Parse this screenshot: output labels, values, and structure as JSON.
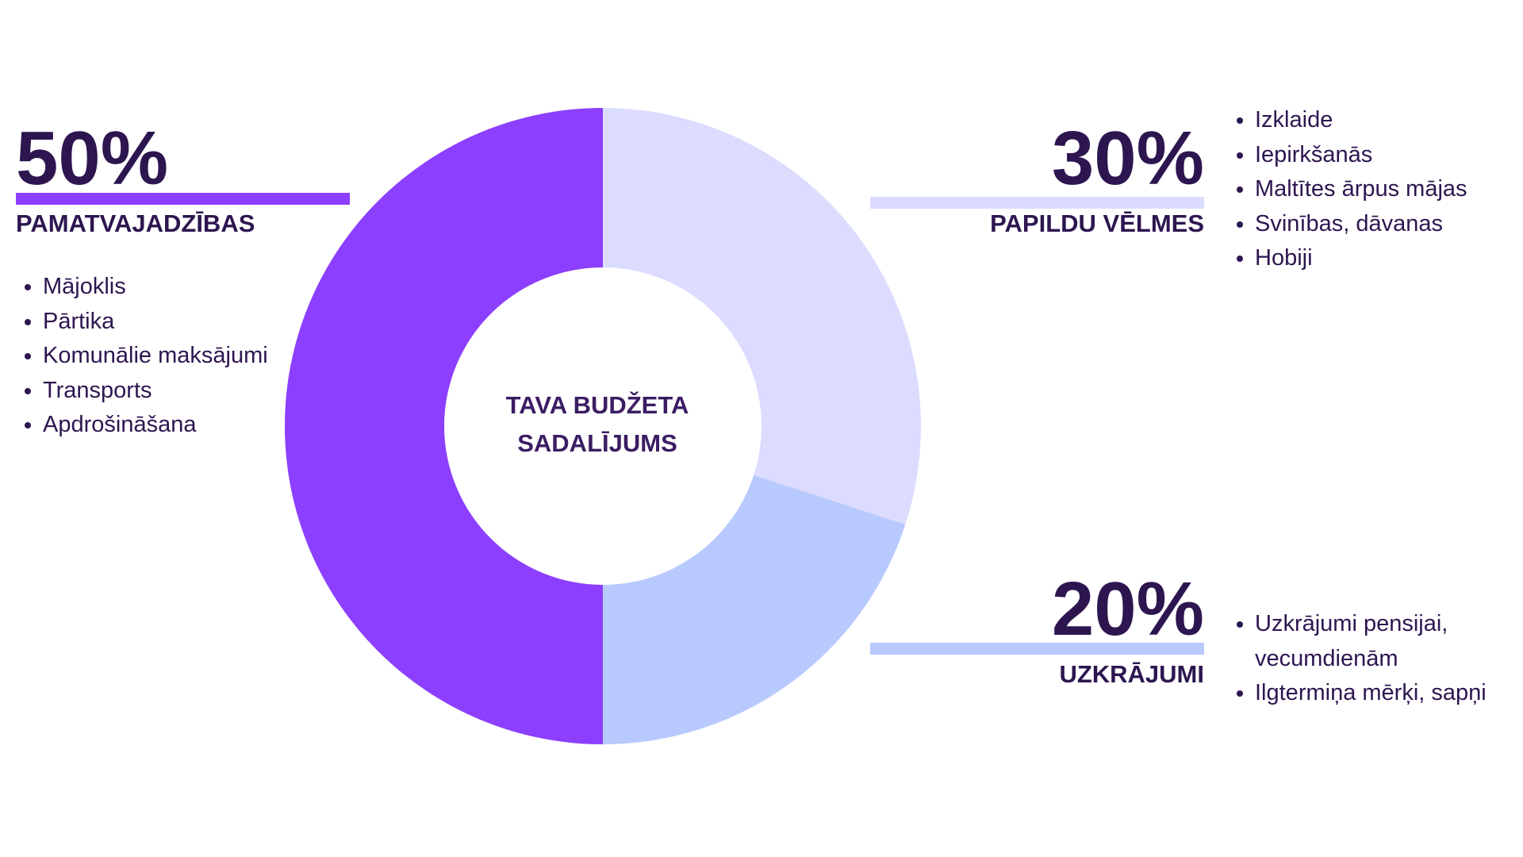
{
  "chart_data": {
    "type": "donut",
    "center_label": [
      "TAVA BUDŽETA",
      "SADALĪJUMS"
    ],
    "categories": [
      "PAMATVAJADZĪBAS",
      "PAPILDU VĒLMES",
      "UZKRĀJUMI"
    ],
    "values": [
      50,
      30,
      20
    ],
    "value_labels": [
      "50%",
      "30%",
      "20%"
    ],
    "colors": [
      "#8c3ffe",
      "#dcdcff",
      "#b8cafd"
    ],
    "items": [
      [
        "Mājoklis",
        "Pārtika",
        "Komunālie maksājumi",
        "Transports",
        "Apdrošināšana"
      ],
      [
        "Izklaide",
        "Iepirkšanās",
        "Maltītes ārpus mājas",
        "Svinības, dāvanas",
        "Hobiji"
      ],
      [
        "Uzkrājumi pensijai, vecumdienām",
        "Ilgtermiņa mērķi, sapņi"
      ]
    ]
  }
}
